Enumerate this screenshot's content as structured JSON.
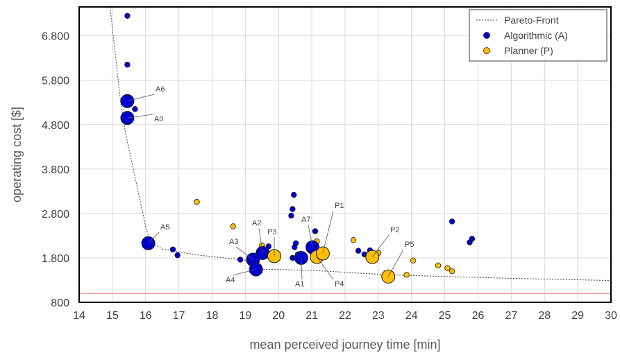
{
  "chart_data": {
    "type": "scatter",
    "xlabel": "mean perceived journey time [min]",
    "ylabel": "operating cost [$]",
    "xlim": [
      14,
      30
    ],
    "ylim": [
      800,
      7450
    ],
    "xticks": [
      "14",
      "15",
      "16",
      "17",
      "18",
      "19",
      "20",
      "21",
      "22",
      "23",
      "24",
      "25",
      "26",
      "27",
      "28",
      "29",
      "30"
    ],
    "yticks": [
      "800",
      "1.800",
      "2.800",
      "3.800",
      "4.800",
      "5.800",
      "6.800"
    ],
    "grid": true,
    "legend_position": "top-right",
    "legend": [
      {
        "label": "Pareto-Front",
        "kind": "dotted-line",
        "color": "#404040"
      },
      {
        "label": "Algorithmic (A)",
        "kind": "marker",
        "color": "#0000cc"
      },
      {
        "label": "Planner (P)",
        "kind": "marker",
        "color": "#ffbf00"
      }
    ],
    "reference_line": {
      "y": 1000,
      "color": "#f08080"
    },
    "pareto_front": [
      [
        14.93,
        7450
      ],
      [
        15.1,
        6300
      ],
      [
        15.25,
        5300
      ],
      [
        15.4,
        4600
      ],
      [
        15.6,
        3900
      ],
      [
        15.8,
        3200
      ],
      [
        16.0,
        2500
      ],
      [
        16.15,
        2150
      ],
      [
        16.5,
        2000
      ],
      [
        17.5,
        1870
      ],
      [
        19.0,
        1750
      ],
      [
        19.3,
        1550
      ],
      [
        21.0,
        1520
      ],
      [
        23.3,
        1420
      ],
      [
        25.0,
        1380
      ],
      [
        27.0,
        1340
      ],
      [
        30.0,
        1290
      ]
    ],
    "series": [
      {
        "name": "Algorithmic (A)",
        "color": "#0000cc",
        "points": [
          {
            "x": 15.45,
            "y": 7250,
            "size": "small"
          },
          {
            "x": 15.45,
            "y": 6150,
            "size": "small"
          },
          {
            "x": 15.68,
            "y": 5150,
            "size": "small"
          },
          {
            "x": 16.82,
            "y": 1990,
            "size": "small"
          },
          {
            "x": 16.96,
            "y": 1860,
            "size": "small"
          },
          {
            "x": 18.85,
            "y": 1760,
            "size": "small"
          },
          {
            "x": 19.7,
            "y": 2060,
            "size": "small"
          },
          {
            "x": 20.38,
            "y": 2750,
            "size": "small"
          },
          {
            "x": 20.42,
            "y": 2900,
            "size": "small"
          },
          {
            "x": 20.46,
            "y": 3220,
            "size": "small"
          },
          {
            "x": 20.48,
            "y": 2040,
            "size": "small"
          },
          {
            "x": 20.52,
            "y": 2130,
            "size": "small"
          },
          {
            "x": 20.42,
            "y": 1800,
            "size": "small"
          },
          {
            "x": 21.1,
            "y": 2400,
            "size": "small"
          },
          {
            "x": 22.4,
            "y": 1960,
            "size": "small"
          },
          {
            "x": 22.58,
            "y": 1880,
            "size": "small"
          },
          {
            "x": 22.75,
            "y": 1970,
            "size": "small"
          },
          {
            "x": 25.22,
            "y": 2620,
            "size": "small"
          },
          {
            "x": 25.75,
            "y": 2150,
            "size": "small"
          },
          {
            "x": 25.82,
            "y": 2230,
            "size": "small"
          }
        ]
      },
      {
        "name": "Planner (P)",
        "color": "#ffbf00",
        "points": [
          {
            "x": 17.54,
            "y": 3060,
            "size": "small"
          },
          {
            "x": 18.63,
            "y": 2510,
            "size": "small"
          },
          {
            "x": 19.5,
            "y": 2080,
            "size": "small"
          },
          {
            "x": 20.58,
            "y": 1880,
            "size": "small"
          },
          {
            "x": 21.15,
            "y": 2170,
            "size": "small"
          },
          {
            "x": 21.3,
            "y": 1830,
            "size": "small"
          },
          {
            "x": 21.38,
            "y": 1950,
            "size": "small"
          },
          {
            "x": 22.25,
            "y": 2200,
            "size": "small"
          },
          {
            "x": 23.0,
            "y": 1910,
            "size": "small"
          },
          {
            "x": 23.85,
            "y": 1420,
            "size": "small"
          },
          {
            "x": 24.05,
            "y": 1740,
            "size": "small"
          },
          {
            "x": 24.8,
            "y": 1630,
            "size": "small"
          },
          {
            "x": 25.08,
            "y": 1570,
            "size": "small"
          },
          {
            "x": 25.22,
            "y": 1500,
            "size": "small"
          }
        ]
      }
    ],
    "labeled_points": [
      {
        "label": "A6",
        "x": 15.45,
        "y": 5330,
        "color": "#0000cc"
      },
      {
        "label": "A0",
        "x": 15.45,
        "y": 4950,
        "color": "#0000cc"
      },
      {
        "label": "A5",
        "x": 16.08,
        "y": 2130,
        "color": "#0000cc"
      },
      {
        "label": "A3",
        "x": 19.23,
        "y": 1760,
        "color": "#0000cc"
      },
      {
        "label": "A2",
        "x": 19.52,
        "y": 1910,
        "color": "#0000cc"
      },
      {
        "label": "A4",
        "x": 19.32,
        "y": 1540,
        "color": "#0000cc"
      },
      {
        "label": "A1",
        "x": 20.68,
        "y": 1800,
        "color": "#0000cc"
      },
      {
        "label": "A7",
        "x": 21.02,
        "y": 2040,
        "color": "#0000cc"
      },
      {
        "label": "P3",
        "x": 19.87,
        "y": 1840,
        "color": "#ffbf00"
      },
      {
        "label": "P4",
        "x": 21.15,
        "y": 1820,
        "color": "#ffbf00"
      },
      {
        "label": "P1",
        "x": 21.33,
        "y": 1900,
        "color": "#ffbf00"
      },
      {
        "label": "P2",
        "x": 22.82,
        "y": 1820,
        "color": "#ffbf00"
      },
      {
        "label": "P5",
        "x": 23.3,
        "y": 1380,
        "color": "#ffbf00"
      }
    ]
  }
}
